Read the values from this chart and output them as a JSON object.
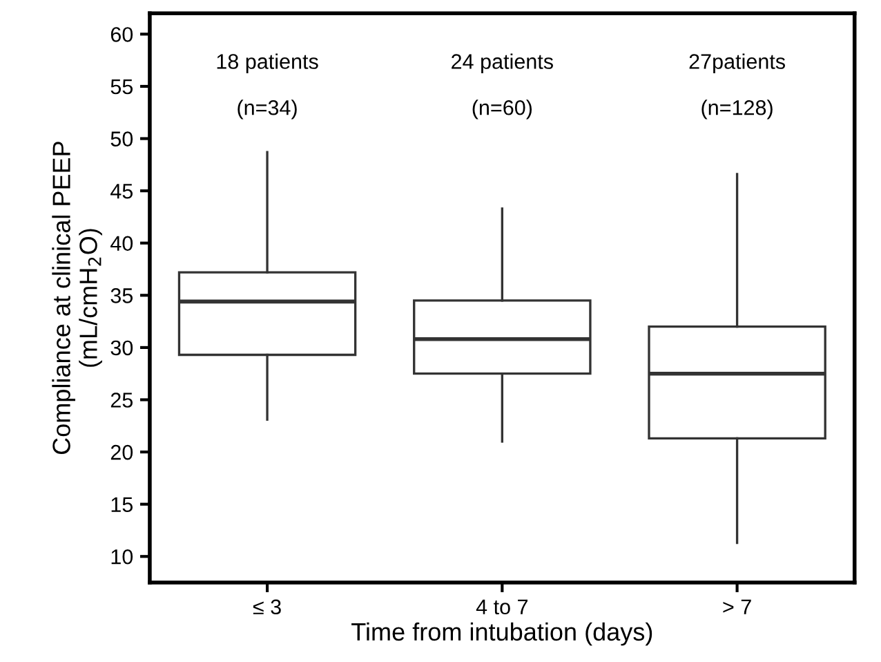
{
  "chart_data": {
    "type": "box",
    "xlabel": "Time from intubation (days)",
    "ylabel": "Compliance at clinical PEEP\n(mL/cmH$_{2}$O)",
    "categories": [
      "≤ 3",
      "4 to 7",
      "> 7"
    ],
    "boxes": [
      {
        "low": 23.1,
        "q1": 29.3,
        "median": 34.4,
        "q3": 37.2,
        "high": 48.7
      },
      {
        "low": 21.0,
        "q1": 27.5,
        "median": 30.8,
        "q3": 34.5,
        "high": 43.3
      },
      {
        "low": 11.3,
        "q1": 21.3,
        "median": 27.5,
        "q3": 32.0,
        "high": 46.6
      }
    ],
    "color": "#333333",
    "ylim": [
      7.5,
      62
    ],
    "yticks": [
      10,
      15,
      20,
      25,
      30,
      35,
      40,
      45,
      50,
      55,
      60
    ],
    "grid": false,
    "annotations": [
      "18 patients",
      "(n=34)",
      "24 patients",
      "(n=60)",
      "27patients",
      "(n=128)"
    ]
  }
}
